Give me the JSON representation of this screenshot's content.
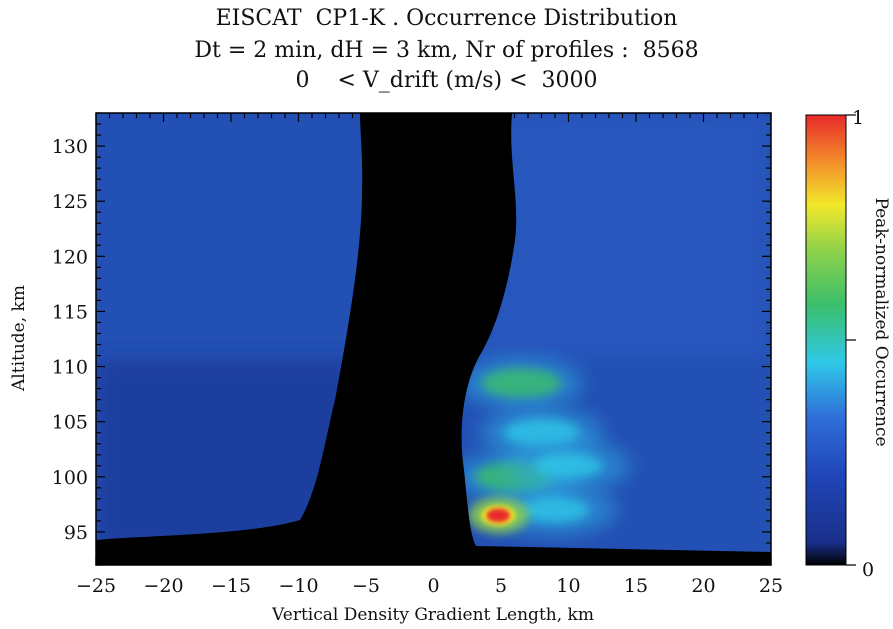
{
  "chart_data": {
    "type": "heatmap",
    "title": "EISCAT  CP1-K . Occurrence Distribution",
    "subtitle": "Dt = 2 min, dH = 3 km, Nr of profiles :  8568",
    "subtitle2": "0    < V_drift (m/s) <  3000",
    "xlabel": "Vertical Density Gradient Length, km",
    "ylabel": "Altitude, km",
    "colorbar_label": "Peak-normalized Occurrence",
    "xlim": [
      -25,
      25
    ],
    "ylim": [
      92,
      133
    ],
    "xticks": [
      -25,
      -20,
      -15,
      -10,
      -5,
      0,
      5,
      10,
      15,
      20,
      25
    ],
    "xtick_labels": [
      "−25",
      "−20",
      "−15",
      "−10",
      "−5",
      "0",
      "5",
      "10",
      "15",
      "20",
      "25"
    ],
    "yticks": [
      95,
      100,
      105,
      110,
      115,
      120,
      125,
      130
    ],
    "ytick_labels": [
      "95",
      "100",
      "105",
      "110",
      "115",
      "120",
      "125",
      "130"
    ],
    "colorbar_range": [
      0,
      1
    ],
    "colorbar_tick_labels": [
      "0",
      "1"
    ],
    "colormap": [
      "#000000",
      "#1f3fa8",
      "#2f6fd8",
      "#2fc8e8",
      "#3bbf6a",
      "#b8d63a",
      "#f2e82a",
      "#f28a2a",
      "#e82a2a"
    ],
    "peak": {
      "x": 4.8,
      "y": 96.5,
      "value": 1.0
    },
    "features": [
      {
        "x": 6.5,
        "y": 108.5,
        "value": 0.45
      },
      {
        "x": 8,
        "y": 104,
        "value": 0.4
      },
      {
        "x": 6,
        "y": 100,
        "value": 0.45
      },
      {
        "x": 10,
        "y": 101,
        "value": 0.3
      },
      {
        "x": 9,
        "y": 97,
        "value": 0.3
      }
    ],
    "background_value": 0.18,
    "zero_band": "black column of near-zero occurrence around x = 0, narrowing with altitude"
  }
}
